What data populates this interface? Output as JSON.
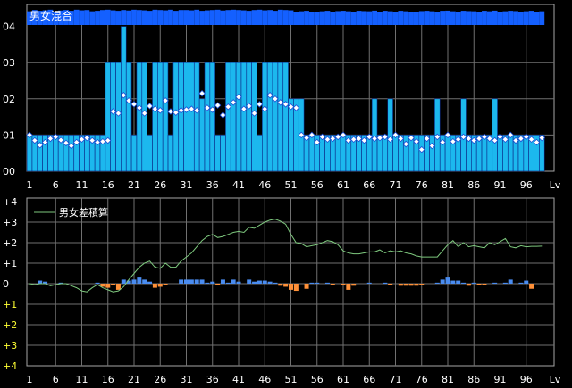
{
  "colors": {
    "background": "#000000",
    "panel_border": "#a6a6a6",
    "grid": "#707070",
    "top_bar_fill": "#1cb8ee",
    "top_bar_edge": "#0a2a8a",
    "top_strip": "#1460ff",
    "marker_fill": "#ffffff",
    "marker_edge": "#1a4fd8",
    "line_green": "#7ec87e",
    "bar_positive": "#4a8cf0",
    "bar_negative": "#ff9038",
    "tick_text": "#ffffff",
    "tick_text_yellow": "#ffff33"
  },
  "chart_data": [
    {
      "type": "bar",
      "title": "男女混合",
      "x_tick_labels": [
        "1",
        "6",
        "11",
        "16",
        "21",
        "26",
        "31",
        "36",
        "41",
        "46",
        "51",
        "56",
        "61",
        "66",
        "71",
        "76",
        "81",
        "86",
        "91",
        "96",
        "Lv"
      ],
      "y_tick_labels": [
        "00",
        "01",
        "02",
        "03",
        "04"
      ],
      "xlim": [
        1,
        99
      ],
      "ylim": [
        0,
        4
      ],
      "grid": true,
      "bar_values": [
        1,
        1,
        1,
        1,
        1,
        1,
        1,
        1,
        1,
        1,
        1,
        1,
        1,
        1,
        1,
        3,
        3,
        3,
        4,
        3,
        1,
        3,
        3,
        1,
        3,
        3,
        3,
        1,
        3,
        3,
        3,
        3,
        3,
        2,
        3,
        3,
        1,
        1,
        3,
        3,
        3,
        3,
        3,
        3,
        1,
        3,
        3,
        3,
        3,
        3,
        2,
        2,
        2,
        1,
        1,
        1,
        1,
        1,
        1,
        1,
        1,
        1,
        1,
        1,
        1,
        1,
        2,
        1,
        1,
        2,
        1,
        1,
        1,
        1,
        1,
        1,
        1,
        1,
        2,
        1,
        1,
        1,
        1,
        2,
        1,
        1,
        1,
        1,
        1,
        2,
        1,
        1,
        1,
        1,
        1,
        1,
        1,
        1,
        1
      ],
      "marker_values": [
        1.0,
        0.85,
        0.72,
        0.8,
        0.9,
        0.95,
        0.86,
        0.78,
        0.7,
        0.8,
        0.88,
        0.92,
        0.85,
        0.8,
        0.82,
        0.85,
        1.65,
        1.6,
        2.1,
        1.95,
        1.85,
        1.75,
        1.6,
        1.8,
        1.72,
        1.68,
        1.95,
        1.65,
        1.62,
        1.68,
        1.7,
        1.72,
        1.68,
        2.15,
        1.75,
        1.7,
        1.82,
        1.55,
        1.78,
        1.9,
        2.05,
        1.72,
        1.8,
        1.6,
        1.85,
        1.72,
        2.1,
        2.0,
        1.9,
        1.85,
        1.78,
        1.75,
        1.0,
        0.92,
        1.0,
        0.8,
        0.95,
        0.88,
        0.9,
        0.95,
        1.0,
        0.85,
        0.88,
        0.9,
        0.85,
        0.95,
        0.9,
        0.92,
        0.95,
        0.88,
        1.0,
        0.9,
        0.75,
        0.92,
        0.82,
        0.6,
        0.9,
        0.7,
        0.95,
        0.8,
        1.0,
        0.82,
        0.88,
        0.95,
        0.9,
        0.85,
        0.9,
        0.95,
        0.9,
        0.85,
        0.95,
        0.88,
        1.0,
        0.85,
        0.9,
        0.95,
        0.88,
        0.8,
        0.92
      ],
      "strip_values": [
        0.52,
        0.6,
        0.55,
        0.58,
        0.62,
        0.5,
        0.57,
        0.6,
        0.55,
        0.62,
        0.58,
        0.6,
        0.52,
        0.55,
        0.6,
        0.62,
        0.58,
        0.55,
        0.6,
        0.57,
        0.62,
        0.6,
        0.58,
        0.55,
        0.62,
        0.6,
        0.58,
        0.62,
        0.55,
        0.6,
        0.6,
        0.58,
        0.62,
        0.55,
        0.58,
        0.6,
        0.62,
        0.57,
        0.6,
        0.62,
        0.6,
        0.58,
        0.55,
        0.6,
        0.62,
        0.58,
        0.6,
        0.55,
        0.62,
        0.6,
        0.58,
        0.5,
        0.52,
        0.55,
        0.5,
        0.48,
        0.52,
        0.55,
        0.5,
        0.53,
        0.55,
        0.52,
        0.5,
        0.55,
        0.53,
        0.52,
        0.56,
        0.5,
        0.55,
        0.52,
        0.5,
        0.55,
        0.52,
        0.5,
        0.48,
        0.53,
        0.55,
        0.52,
        0.5,
        0.55,
        0.56,
        0.52,
        0.5,
        0.55,
        0.53,
        0.52,
        0.5,
        0.55,
        0.52,
        0.56,
        0.5,
        0.52,
        0.55,
        0.53,
        0.5,
        0.52,
        0.55,
        0.5,
        0.52
      ]
    },
    {
      "type": "line",
      "legend": "男女差積算",
      "legend_position": "top-left",
      "x_tick_labels": [
        "1",
        "6",
        "11",
        "16",
        "21",
        "26",
        "31",
        "36",
        "41",
        "46",
        "51",
        "56",
        "61",
        "66",
        "71",
        "76",
        "81",
        "86",
        "91",
        "96",
        "Lv"
      ],
      "y_tick_labels": [
        "+4",
        "+3",
        "+2",
        "+1",
        "0",
        "+1",
        "+2",
        "+3",
        "+4"
      ],
      "xlim": [
        1,
        99
      ],
      "ylim": [
        -4,
        4
      ],
      "grid": true,
      "line_values": [
        0.0,
        -0.05,
        0.0,
        0.0,
        -0.1,
        -0.05,
        0.0,
        0.0,
        -0.1,
        -0.2,
        -0.35,
        -0.4,
        -0.2,
        -0.05,
        -0.2,
        -0.3,
        -0.4,
        -0.35,
        -0.15,
        0.2,
        0.5,
        0.8,
        1.0,
        1.1,
        0.8,
        0.75,
        1.0,
        0.8,
        0.8,
        1.1,
        1.3,
        1.5,
        1.8,
        2.1,
        2.3,
        2.4,
        2.25,
        2.3,
        2.4,
        2.5,
        2.55,
        2.5,
        2.75,
        2.7,
        2.85,
        3.0,
        3.1,
        3.15,
        3.05,
        2.9,
        2.4,
        2.0,
        1.95,
        1.8,
        1.85,
        1.9,
        2.0,
        2.1,
        2.05,
        1.9,
        1.6,
        1.5,
        1.45,
        1.45,
        1.5,
        1.55,
        1.55,
        1.65,
        1.5,
        1.6,
        1.55,
        1.6,
        1.5,
        1.45,
        1.35,
        1.3,
        1.3,
        1.3,
        1.3,
        1.6,
        1.9,
        2.1,
        1.8,
        2.0,
        1.8,
        1.85,
        1.8,
        1.75,
        2.0,
        1.9,
        2.05,
        2.2,
        1.8,
        1.75,
        1.85,
        1.8,
        1.82,
        1.82,
        1.83
      ],
      "diff_values": [
        0.0,
        0.0,
        0.15,
        0.1,
        0.0,
        0.0,
        0.05,
        0.0,
        0.0,
        0.0,
        0.0,
        0.0,
        0.0,
        0.05,
        -0.15,
        -0.2,
        -0.05,
        -0.3,
        0.2,
        0.15,
        0.2,
        0.3,
        0.2,
        0.1,
        -0.2,
        -0.15,
        -0.05,
        0.0,
        0.0,
        0.2,
        0.2,
        0.2,
        0.2,
        0.2,
        0.05,
        0.1,
        -0.05,
        0.2,
        0.05,
        0.2,
        0.1,
        0.0,
        0.2,
        0.1,
        0.15,
        0.15,
        0.1,
        0.05,
        -0.1,
        -0.15,
        -0.3,
        -0.35,
        0.0,
        -0.25,
        0.05,
        0.05,
        0.0,
        0.05,
        -0.05,
        0.0,
        -0.05,
        -0.3,
        -0.1,
        0.0,
        0.0,
        0.05,
        0.0,
        0.0,
        0.05,
        -0.05,
        0.0,
        -0.1,
        -0.1,
        -0.1,
        -0.1,
        -0.05,
        0.0,
        0.0,
        0.05,
        0.2,
        0.3,
        0.15,
        0.15,
        0.05,
        -0.1,
        0.05,
        -0.05,
        -0.05,
        0.0,
        0.05,
        0.0,
        0.05,
        0.2,
        0.0,
        0.05,
        0.15,
        -0.25,
        0.0,
        0.0
      ]
    }
  ]
}
